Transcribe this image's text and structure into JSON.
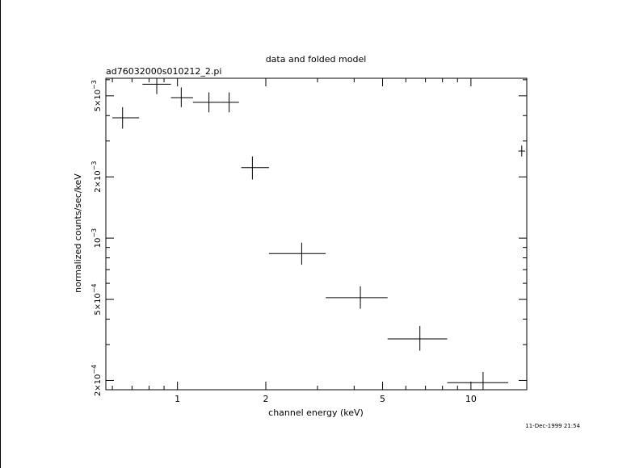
{
  "chart_data": {
    "type": "scatter",
    "title": "data and folded model",
    "subtitle": "ad76032000s010212_2.pi",
    "xlabel": "channel energy (keV)",
    "ylabel": "normalized counts/sec/keV",
    "timestamp": "11-Dec-1999 21:54",
    "x_scale": "log",
    "y_scale": "log",
    "xlim": [
      0.57,
      15.5
    ],
    "ylim": [
      0.00018,
      0.0061
    ],
    "grid": false,
    "x_major_ticks": [
      {
        "value": 1,
        "label": "1"
      },
      {
        "value": 2,
        "label": "2"
      },
      {
        "value": 5,
        "label": "5"
      },
      {
        "value": 10,
        "label": "10"
      }
    ],
    "x_minor_ticks": [
      0.6,
      0.7,
      0.8,
      0.9,
      3,
      4,
      6,
      7,
      8,
      9
    ],
    "y_major_ticks": [
      {
        "value": 0.0002,
        "mant": "2×10",
        "exp": "−4"
      },
      {
        "value": 0.0005,
        "mant": "5×10",
        "exp": "−4"
      },
      {
        "value": 0.001,
        "mant": "10",
        "exp": "−3"
      },
      {
        "value": 0.002,
        "mant": "2×10",
        "exp": "−3"
      },
      {
        "value": 0.005,
        "mant": "5×10",
        "exp": "−3"
      }
    ],
    "y_minor_ticks": [
      0.0003,
      0.0004,
      0.0006,
      0.0007,
      0.0008,
      0.0009,
      0.003,
      0.004,
      0.006
    ],
    "series": [
      {
        "points": [
          {
            "x": 0.65,
            "xlo": 0.6,
            "xhi": 0.74,
            "y": 0.0039,
            "ylo": 0.00345,
            "yhi": 0.0044
          },
          {
            "x": 0.85,
            "xlo": 0.76,
            "xhi": 0.95,
            "y": 0.0057,
            "ylo": 0.0051,
            "yhi": 0.0064
          },
          {
            "x": 1.03,
            "xlo": 0.95,
            "xhi": 1.13,
            "y": 0.0049,
            "ylo": 0.0044,
            "yhi": 0.0055
          },
          {
            "x": 1.28,
            "xlo": 1.13,
            "xhi": 1.4,
            "y": 0.00465,
            "ylo": 0.00415,
            "yhi": 0.0052
          },
          {
            "x": 1.5,
            "xlo": 1.4,
            "xhi": 1.62,
            "y": 0.00465,
            "ylo": 0.00415,
            "yhi": 0.0052
          },
          {
            "x": 1.8,
            "xlo": 1.65,
            "xhi": 2.05,
            "y": 0.00222,
            "ylo": 0.00194,
            "yhi": 0.00252
          },
          {
            "x": 2.65,
            "xlo": 2.05,
            "xhi": 3.2,
            "y": 0.00084,
            "ylo": 0.00074,
            "yhi": 0.00095
          },
          {
            "x": 4.2,
            "xlo": 3.2,
            "xhi": 5.2,
            "y": 0.00051,
            "ylo": 0.00045,
            "yhi": 0.00058
          },
          {
            "x": 6.7,
            "xlo": 5.2,
            "xhi": 8.3,
            "y": 0.00032,
            "ylo": 0.00028,
            "yhi": 0.00037
          },
          {
            "x": 11.0,
            "xlo": 8.3,
            "xhi": 13.4,
            "y": 0.000195,
            "ylo": 0.00017,
            "yhi": 0.00022
          },
          {
            "x": 14.9,
            "xlo": 14.5,
            "xhi": 15.3,
            "y": 0.00268,
            "ylo": 0.00252,
            "yhi": 0.00285
          }
        ]
      }
    ]
  }
}
